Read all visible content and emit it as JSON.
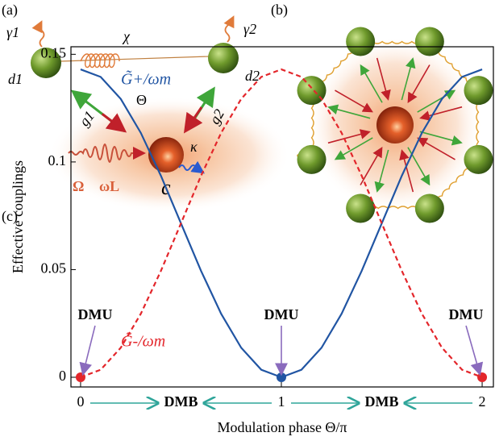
{
  "diagram_a": {
    "label": "(a)",
    "gamma1": "γ1",
    "chi": "χ",
    "gamma2": "γ2",
    "d1": "d1",
    "d2": "d2",
    "theta": "Θ",
    "g1": "g1",
    "g2": "g2",
    "kappa": "κ",
    "omega": "Ω",
    "omegaL": "ωL",
    "cavity": "c"
  },
  "diagram_b": {
    "label": "(b)"
  },
  "chart_data": {
    "type": "line",
    "panel_label": "(c)",
    "xlabel": "Modulation phase Θ/π",
    "ylabel": "Effective couplings",
    "x": [
      0,
      0.1,
      0.2,
      0.3,
      0.4,
      0.5,
      0.6,
      0.7,
      0.8,
      0.9,
      1,
      1.1,
      1.2,
      1.3,
      1.4,
      1.5,
      1.6,
      1.7,
      1.8,
      1.9,
      2
    ],
    "series": [
      {
        "name": "G̃+/ωm",
        "color": "#2155a3",
        "dashed": false,
        "values": [
          0.143,
          0.1395,
          0.1293,
          0.1135,
          0.0936,
          0.0715,
          0.0494,
          0.0295,
          0.0137,
          0.0035,
          0,
          0.0035,
          0.0137,
          0.0295,
          0.0494,
          0.0715,
          0.0936,
          0.1135,
          0.1293,
          0.1395,
          0.143
        ]
      },
      {
        "name": "G̃-/ωm",
        "color": "#e3262b",
        "dashed": true,
        "values": [
          0,
          0.0035,
          0.0137,
          0.0295,
          0.0494,
          0.0715,
          0.0936,
          0.1135,
          0.1293,
          0.1395,
          0.143,
          0.1395,
          0.1293,
          0.1135,
          0.0936,
          0.0715,
          0.0494,
          0.0295,
          0.0137,
          0.0035,
          0
        ]
      }
    ],
    "xlim": [
      -0.048,
      2.056
    ],
    "ylim": [
      -0.0045,
      0.1535
    ],
    "xticks": [
      0,
      1,
      2
    ],
    "yticks": [
      0,
      0.05,
      0.1,
      0.15
    ],
    "annotations": [
      {
        "text": "DMU",
        "x": 0
      },
      {
        "text": "DMU",
        "x": 1
      },
      {
        "text": "DMU",
        "x": 2
      },
      {
        "text": "DMB",
        "x": 0.5
      },
      {
        "text": "DMB",
        "x": 1.5
      }
    ]
  }
}
